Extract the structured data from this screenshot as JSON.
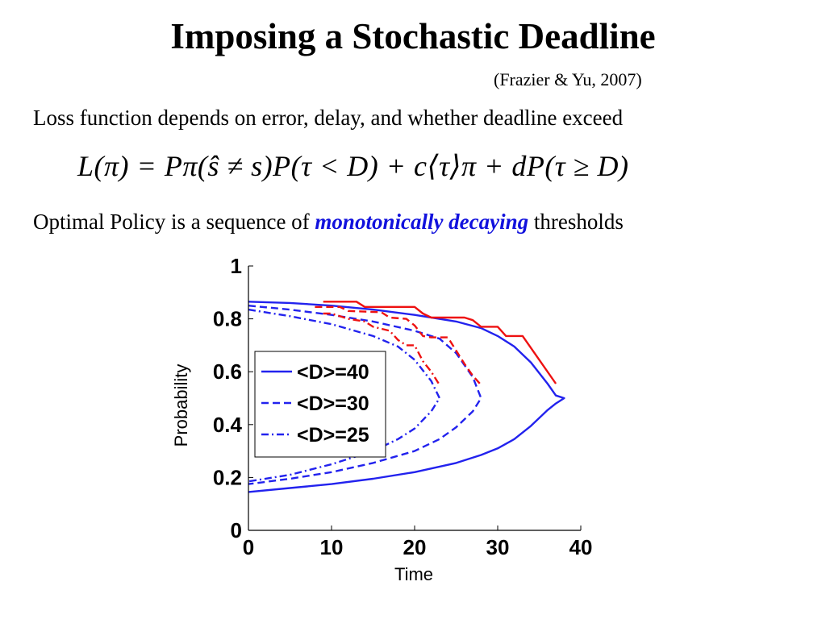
{
  "slide": {
    "title": "Imposing a Stochastic Deadline",
    "citation": "(Frazier & Yu, 2007)",
    "bullet1": "Loss function depends on error, delay, and whether deadline exceed",
    "equation": "L(π) = Pπ(ŝ ≠ s)P(τ < D) + c⟨τ⟩π + dP(τ ≥ D)",
    "bullet2_prefix": "Optimal Policy is a sequence of ",
    "bullet2_emphasis": "monotonically decaying",
    "bullet2_suffix": " thresholds"
  },
  "colors": {
    "blue": "#2222ee",
    "red": "#ee1111",
    "emphasis": "#1111dd"
  },
  "chart_data": {
    "type": "line",
    "title": "",
    "xlabel": "Time",
    "ylabel": "Probability",
    "xlim": [
      0,
      40
    ],
    "ylim": [
      0,
      1
    ],
    "xticks": [
      "0",
      "10",
      "20",
      "30",
      "40"
    ],
    "yticks": [
      "0",
      "0.2",
      "0.4",
      "0.6",
      "0.8",
      "1"
    ],
    "xtick_values": [
      0,
      10,
      20,
      30,
      40
    ],
    "ytick_values": [
      0,
      0.2,
      0.4,
      0.6,
      0.8,
      1
    ],
    "grid": false,
    "legend_position": "middle-left",
    "series": [
      {
        "name": "<D>=40",
        "color": "#2222ee",
        "dash": "solid",
        "x": [
          0,
          5,
          10,
          15,
          20,
          25,
          28,
          30,
          32,
          34,
          36,
          37,
          38,
          37,
          36,
          34,
          32,
          30,
          28,
          25,
          20,
          15,
          10,
          5,
          0
        ],
        "y": [
          0.865,
          0.86,
          0.85,
          0.835,
          0.815,
          0.79,
          0.765,
          0.735,
          0.695,
          0.635,
          0.555,
          0.51,
          0.5,
          0.48,
          0.455,
          0.395,
          0.345,
          0.31,
          0.285,
          0.255,
          0.22,
          0.195,
          0.175,
          0.16,
          0.145
        ]
      },
      {
        "name": "<D>=30",
        "color": "#2222ee",
        "dash": "dashed",
        "x": [
          0,
          5,
          10,
          15,
          20,
          23,
          25,
          27,
          28,
          27,
          25,
          23,
          20,
          15,
          10,
          5,
          0
        ],
        "y": [
          0.85,
          0.835,
          0.815,
          0.79,
          0.755,
          0.725,
          0.67,
          0.58,
          0.5,
          0.45,
          0.39,
          0.345,
          0.3,
          0.255,
          0.22,
          0.195,
          0.175
        ]
      },
      {
        "name": "<D>=25",
        "color": "#2222ee",
        "dash": "dashdot",
        "x": [
          0,
          5,
          10,
          15,
          18,
          20,
          22,
          23,
          22,
          20,
          18,
          15,
          10,
          5,
          0
        ],
        "y": [
          0.835,
          0.81,
          0.78,
          0.735,
          0.695,
          0.645,
          0.565,
          0.5,
          0.45,
          0.385,
          0.345,
          0.3,
          0.25,
          0.21,
          0.185
        ]
      },
      {
        "name": "",
        "color": "#ee1111",
        "dash": "solid",
        "x": [
          9,
          13,
          14,
          20,
          21,
          22,
          26,
          27,
          28,
          30,
          31,
          33,
          34,
          35,
          37
        ],
        "y": [
          0.865,
          0.865,
          0.845,
          0.845,
          0.82,
          0.805,
          0.805,
          0.795,
          0.77,
          0.77,
          0.735,
          0.735,
          0.69,
          0.645,
          0.555
        ]
      },
      {
        "name": "",
        "color": "#ee1111",
        "dash": "dashed",
        "x": [
          8,
          11,
          12,
          16,
          17,
          19,
          20,
          21,
          22,
          24,
          25,
          26,
          27,
          28
        ],
        "y": [
          0.845,
          0.845,
          0.83,
          0.825,
          0.805,
          0.8,
          0.775,
          0.735,
          0.73,
          0.73,
          0.68,
          0.63,
          0.585,
          0.55
        ]
      },
      {
        "name": "",
        "color": "#ee1111",
        "dash": "dashdot",
        "x": [
          9,
          10,
          12,
          14,
          15,
          17,
          18,
          19,
          20,
          21,
          22,
          23
        ],
        "y": [
          0.82,
          0.82,
          0.8,
          0.79,
          0.77,
          0.755,
          0.72,
          0.7,
          0.7,
          0.64,
          0.6,
          0.55
        ]
      }
    ]
  }
}
